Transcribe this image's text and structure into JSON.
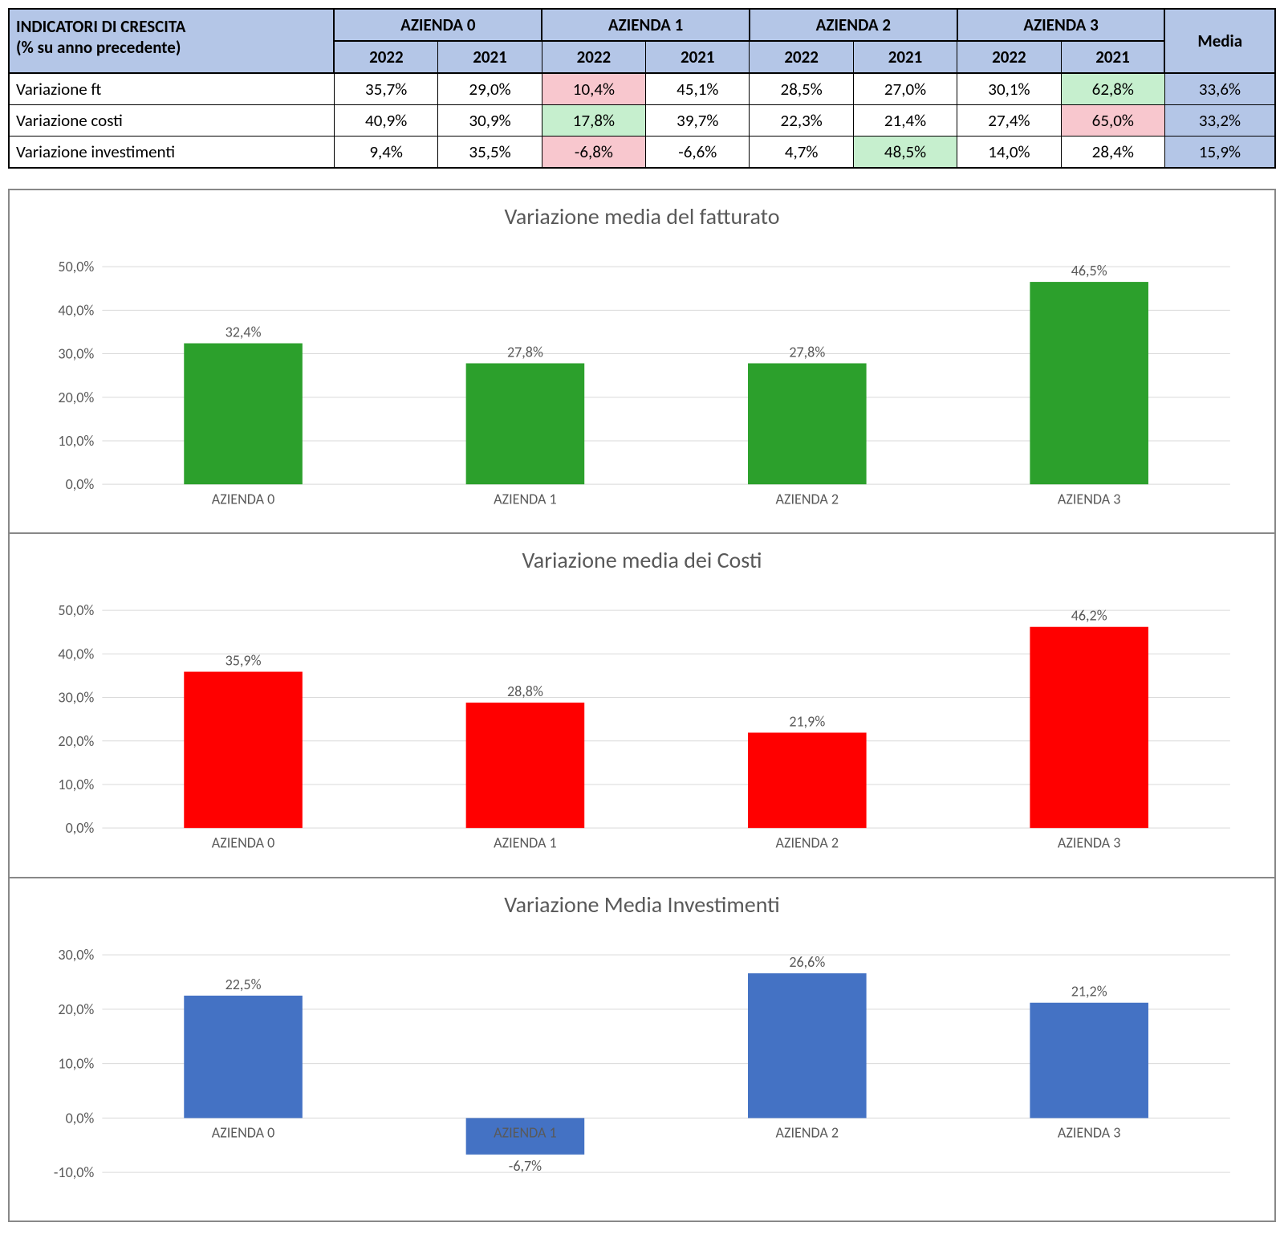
{
  "table": {
    "title_line1": "INDICATORI DI CRESCITA",
    "title_line2": "(% su anno precedente)",
    "companies": [
      "AZIENDA 0",
      "AZIENDA 1",
      "AZIENDA 2",
      "AZIENDA 3"
    ],
    "years": [
      "2022",
      "2021"
    ],
    "media_label": "Media",
    "header_bg": "#b4c6e7",
    "highlight_pink": "#f8c7ce",
    "highlight_green": "#c6efce",
    "border_color": "#000000",
    "rows": [
      {
        "label": "Variazione ft",
        "cells": [
          {
            "v": "35,7%"
          },
          {
            "v": "29,0%"
          },
          {
            "v": "10,4%",
            "hl": "pink"
          },
          {
            "v": "45,1%"
          },
          {
            "v": "28,5%"
          },
          {
            "v": "27,0%"
          },
          {
            "v": "30,1%"
          },
          {
            "v": "62,8%",
            "hl": "green"
          }
        ],
        "media": "33,6%"
      },
      {
        "label": "Variazione costi",
        "cells": [
          {
            "v": "40,9%"
          },
          {
            "v": "30,9%"
          },
          {
            "v": "17,8%",
            "hl": "green"
          },
          {
            "v": "39,7%"
          },
          {
            "v": "22,3%"
          },
          {
            "v": "21,4%"
          },
          {
            "v": "27,4%"
          },
          {
            "v": "65,0%",
            "hl": "pink"
          }
        ],
        "media": "33,2%"
      },
      {
        "label": "Variazione investimenti",
        "cells": [
          {
            "v": "9,4%"
          },
          {
            "v": "35,5%"
          },
          {
            "v": "-6,8%",
            "hl": "pink"
          },
          {
            "v": "-6,6%"
          },
          {
            "v": "4,7%"
          },
          {
            "v": "48,5%",
            "hl": "green"
          },
          {
            "v": "14,0%"
          },
          {
            "v": "28,4%"
          }
        ],
        "media": "15,9%"
      }
    ]
  },
  "charts": [
    {
      "title": "Variazione media del fatturato",
      "type": "bar",
      "categories": [
        "AZIENDA 0",
        "AZIENDA 1",
        "AZIENDA 2",
        "AZIENDA 3"
      ],
      "values": [
        32.4,
        27.8,
        27.8,
        46.5
      ],
      "value_labels": [
        "32,4%",
        "27,8%",
        "27,8%",
        "46,5%"
      ],
      "bar_color": "#2ca02c",
      "ylim": [
        0,
        50
      ],
      "ytick_step": 10,
      "ytick_labels": [
        "0,0%",
        "10,0%",
        "20,0%",
        "30,0%",
        "40,0%",
        "50,0%"
      ],
      "bar_width_ratio": 0.42,
      "label_fontsize": 18,
      "title_fontsize": 28,
      "grid_color": "#d9d9d9",
      "background_color": "#ffffff"
    },
    {
      "title": "Variazione media dei Costi",
      "type": "bar",
      "categories": [
        "AZIENDA 0",
        "AZIENDA 1",
        "AZIENDA 2",
        "AZIENDA 3"
      ],
      "values": [
        35.9,
        28.8,
        21.9,
        46.2
      ],
      "value_labels": [
        "35,9%",
        "28,8%",
        "21,9%",
        "46,2%"
      ],
      "bar_color": "#ff0000",
      "ylim": [
        0,
        50
      ],
      "ytick_step": 10,
      "ytick_labels": [
        "0,0%",
        "10,0%",
        "20,0%",
        "30,0%",
        "40,0%",
        "50,0%"
      ],
      "bar_width_ratio": 0.42,
      "label_fontsize": 18,
      "title_fontsize": 28,
      "grid_color": "#d9d9d9",
      "background_color": "#ffffff"
    },
    {
      "title": "Variazione Media Investimenti",
      "type": "bar",
      "categories": [
        "AZIENDA 0",
        "AZIENDA 1",
        "AZIENDA 2",
        "AZIENDA 3"
      ],
      "values": [
        22.5,
        -6.7,
        26.6,
        21.2
      ],
      "value_labels": [
        "22,5%",
        "-6,7%",
        "26,6%",
        "21,2%"
      ],
      "bar_color": "#4472c4",
      "ylim": [
        -10,
        30
      ],
      "ytick_step": 10,
      "ytick_labels": [
        "-10,0%",
        "0,0%",
        "10,0%",
        "20,0%",
        "30,0%"
      ],
      "bar_width_ratio": 0.42,
      "label_fontsize": 18,
      "title_fontsize": 28,
      "grid_color": "#d9d9d9",
      "background_color": "#ffffff"
    }
  ]
}
